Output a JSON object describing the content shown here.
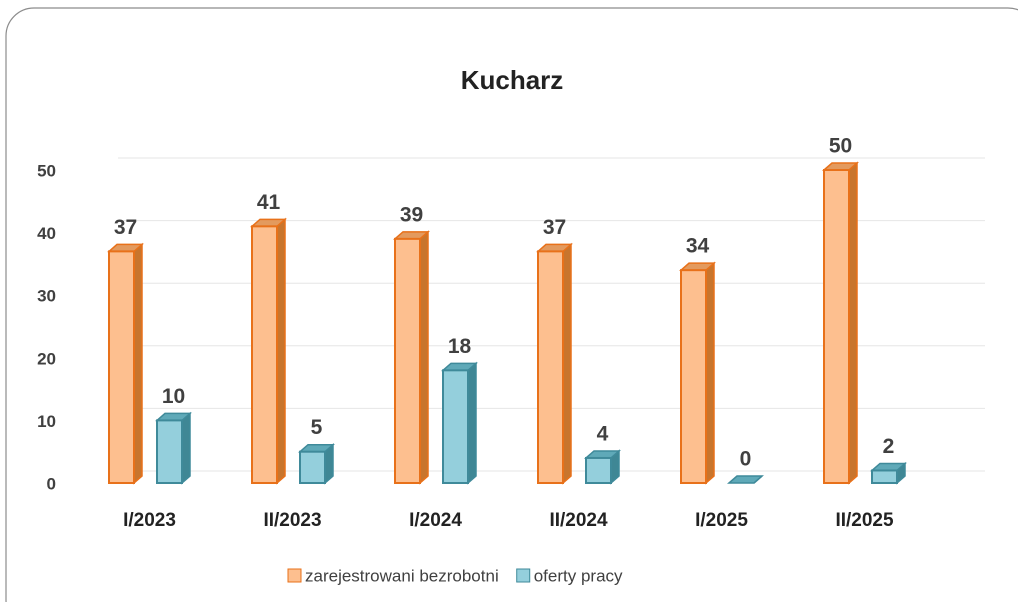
{
  "chart_data": {
    "type": "bar",
    "title": "Kucharz",
    "categories": [
      "I/2023",
      "II/2023",
      "I/2024",
      "II/2024",
      "I/2025",
      "II/2025"
    ],
    "series": [
      {
        "name": "zarejestrowani bezrobotni",
        "color": "#fdbf8f",
        "values": [
          37,
          41,
          39,
          37,
          34,
          50
        ]
      },
      {
        "name": "oferty pracy",
        "color": "#94cfdc",
        "values": [
          10,
          5,
          18,
          4,
          0,
          2
        ]
      }
    ],
    "ylim": [
      0,
      50
    ],
    "yticks": [
      0,
      10,
      20,
      30,
      40,
      50
    ],
    "grid": true,
    "legend": "bottom"
  }
}
